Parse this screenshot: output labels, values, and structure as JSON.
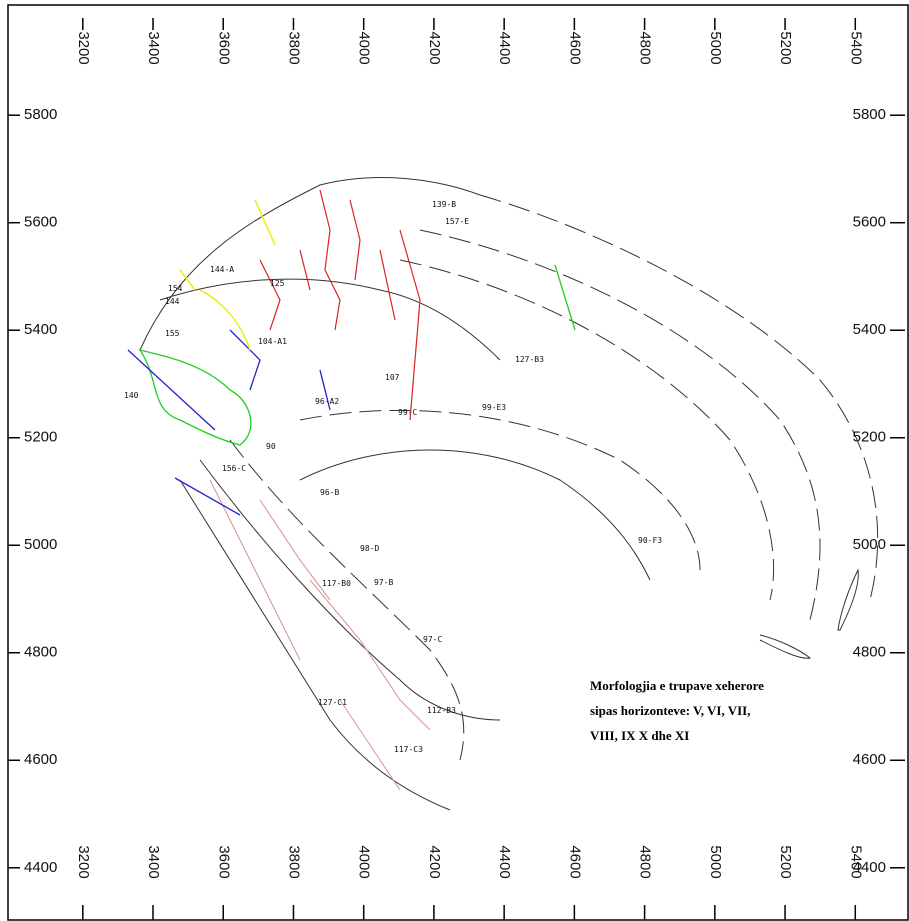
{
  "map": {
    "xlim": [
      2987,
      5553
    ],
    "ylim": [
      4301,
      6005
    ],
    "xticks": [
      3200,
      3400,
      3600,
      3800,
      4000,
      4200,
      4400,
      4600,
      4800,
      5000,
      5200,
      5400
    ],
    "yticks": [
      5800,
      5600,
      5400,
      5200,
      5000,
      4800,
      4600,
      4400
    ],
    "annotation": [
      "Morfologjia e trupave xeherore",
      "sipas  horizonteve: V, VI, VII,",
      "VIII, IX X dhe XI"
    ],
    "labels": [
      "139-B",
      "157-E",
      "144-A",
      "154",
      "144",
      "155",
      "140",
      "104-A1",
      "99-C",
      "96-B",
      "97-B",
      "97-C",
      "117-C3",
      "127-C1",
      "112-B3",
      "90-F3",
      "98-D",
      "96-A2",
      "125",
      "107",
      "117-B0",
      "127-B3",
      "99-E3",
      "156-C",
      "90"
    ]
  }
}
